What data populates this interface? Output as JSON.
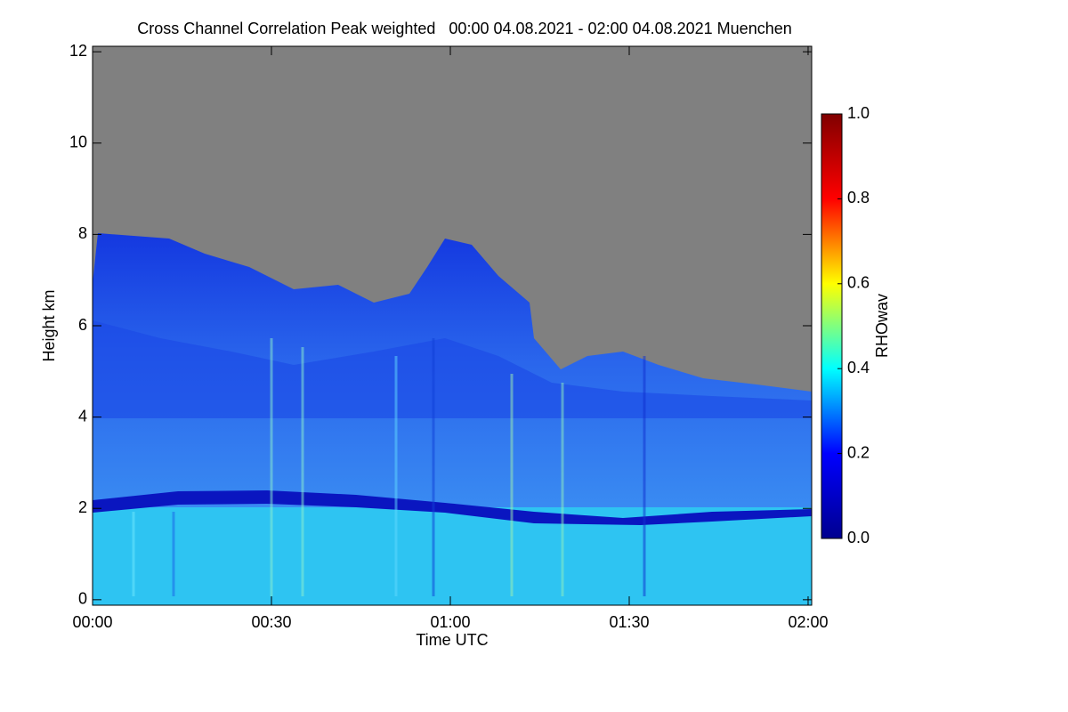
{
  "chart_data": {
    "type": "heatmap",
    "title": "Cross Channel Correlation Peak weighted   00:00 04.08.2021 - 02:00 04.08.2021 Muenchen",
    "xlabel": "Time UTC",
    "ylabel": "Height km",
    "xlim": [
      0,
      120.6
    ],
    "xticks": [
      {
        "value": 0,
        "label": "00:00"
      },
      {
        "value": 30,
        "label": "00:30"
      },
      {
        "value": 60,
        "label": "01:00"
      },
      {
        "value": 90,
        "label": "01:30"
      },
      {
        "value": 120,
        "label": "02:00"
      }
    ],
    "ylim": [
      -0.12,
      12.12
    ],
    "yticks": [
      0,
      2,
      4,
      6,
      8,
      10,
      12
    ],
    "colorbar": {
      "label": "RHOwav",
      "lim": [
        0,
        1
      ],
      "ticks": [
        {
          "value": 0,
          "label": "0.0"
        },
        {
          "value": 0.2,
          "label": "0.2"
        },
        {
          "value": 0.4,
          "label": "0.4"
        },
        {
          "value": 0.6,
          "label": "0.6"
        },
        {
          "value": 0.8,
          "label": "0.8"
        },
        {
          "value": 1,
          "label": "1.0"
        }
      ],
      "colormap": [
        "#00008f",
        "#0000ff",
        "#00ffff",
        "#ffff00",
        "#ff0000",
        "#800000"
      ]
    }
  }
}
